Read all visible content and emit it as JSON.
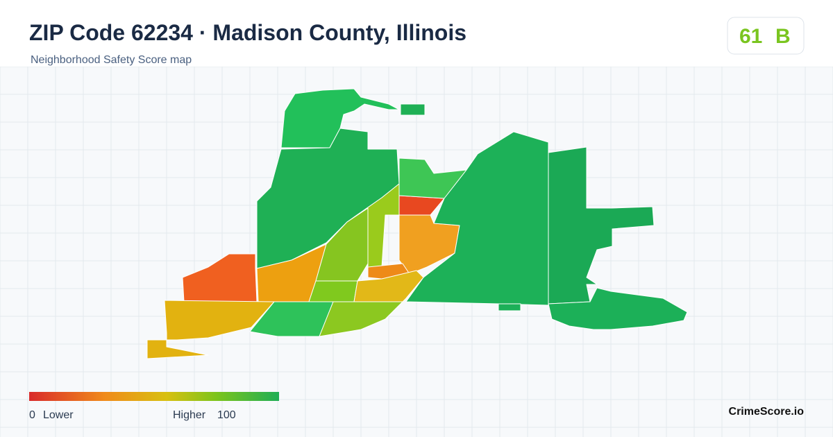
{
  "header": {
    "title": "ZIP Code 62234 · Madison County, Illinois",
    "subtitle": "Neighborhood Safety Score map"
  },
  "score": {
    "value": 61,
    "grade": "B"
  },
  "legend": {
    "min": 0,
    "min_label": "Lower",
    "max_label": "Higher",
    "max": 100
  },
  "footer": {
    "brand": "CrimeScore.io"
  }
}
